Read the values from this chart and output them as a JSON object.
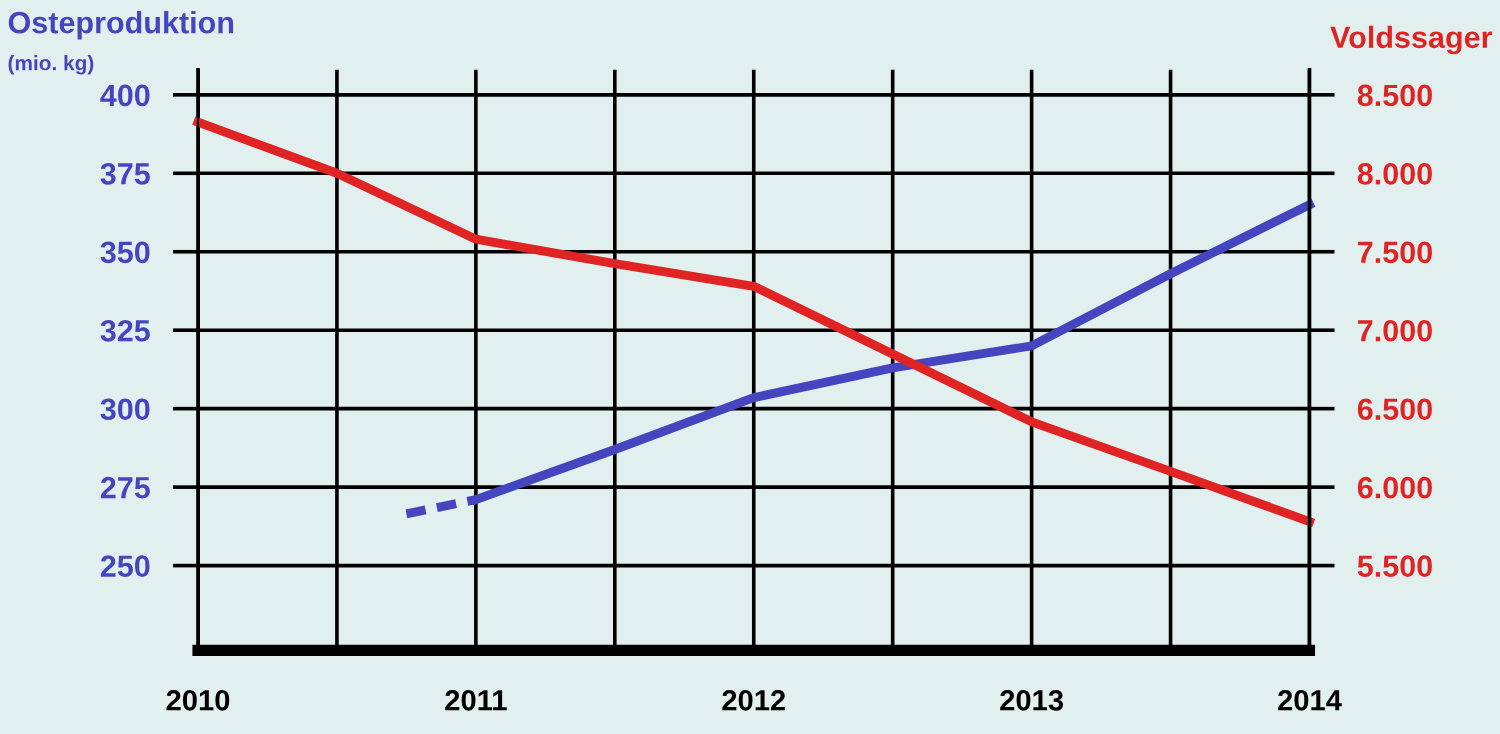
{
  "chart_data": {
    "type": "line",
    "ylabel": "Osteproduktion\n(mio. kg)",
    "y2label": "Voldssager",
    "xlim": [
      2010,
      2014
    ],
    "xticks": [
      2010,
      {
        "value": 2010.5,
        "label": null
      },
      2011,
      {
        "value": 2011.5,
        "label": null
      },
      2012,
      {
        "value": 2012.5,
        "label": null
      },
      2013,
      {
        "value": 2013.5,
        "label": null
      },
      2014
    ],
    "ylim": [
      223,
      408
    ],
    "yticks": [
      250,
      275,
      300,
      325,
      350,
      375,
      400
    ],
    "y2lim": [
      4960,
      8660
    ],
    "y2ticks": [
      {
        "value": 5500,
        "label": "5.500"
      },
      {
        "value": 6000,
        "label": "6.000"
      },
      {
        "value": 6500,
        "label": "6.500"
      },
      {
        "value": 7000,
        "label": "7.000"
      },
      {
        "value": 7500,
        "label": "7.500"
      },
      {
        "value": 8000,
        "label": "8.000"
      },
      {
        "value": 8500,
        "label": "8.500"
      }
    ],
    "grid": true,
    "legend": false,
    "marker": "none",
    "series": [
      {
        "color": "#4545c0",
        "line_style": "dashed",
        "x": [
          2010.75,
          2011
        ],
        "values": [
          266.5,
          271
        ]
      },
      {
        "color": "#4545c0",
        "line_style": "solid",
        "x": [
          2011,
          2011.5,
          2012,
          2012.5,
          2013,
          2013.5,
          2014
        ],
        "values": [
          271,
          287,
          303.5,
          313,
          320,
          343,
          365
        ]
      },
      {
        "color": "#e02424",
        "line_style": "solid",
        "axis": "y2",
        "x": [
          2010,
          2010.5,
          2011,
          2011.5,
          2012,
          2013,
          2013.5,
          2014
        ],
        "values": [
          8326,
          8000,
          7580,
          7424,
          7280,
          6416,
          6100,
          5780
        ]
      }
    ]
  }
}
